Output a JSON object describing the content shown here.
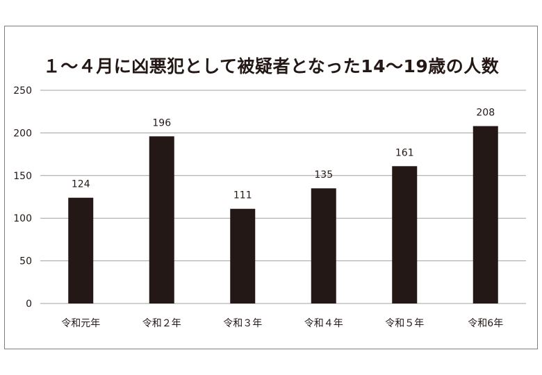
{
  "chart_data": {
    "type": "bar",
    "title": "１～４月に凶悪犯として被疑者となった14～19歳の人数",
    "categories": [
      "令和元年",
      "令和２年",
      "令和３年",
      "令和４年",
      "令和５年",
      "令和6年"
    ],
    "values": [
      124,
      196,
      111,
      135,
      161,
      208
    ],
    "data_labels": [
      "124",
      "196",
      "111",
      "135",
      "161",
      "208"
    ],
    "yticks": [
      "0",
      "50",
      "100",
      "150",
      "200",
      "250"
    ],
    "ylim": [
      0,
      250
    ],
    "grid": true,
    "legend": "none",
    "bar_color": "#231815",
    "grid_color": "#a0a0a0"
  }
}
